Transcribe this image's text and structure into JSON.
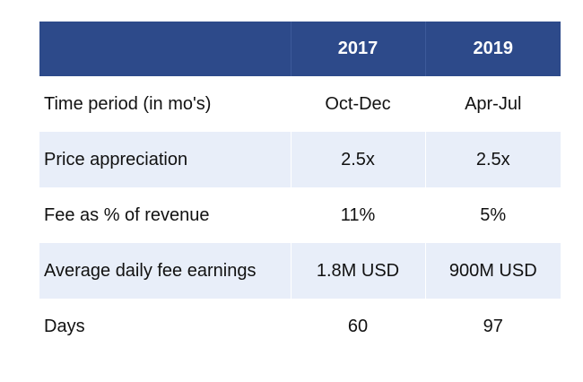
{
  "chart_data": {
    "type": "table",
    "columns": [
      "",
      "2017",
      "2019"
    ],
    "rows": [
      {
        "label": "Time period (in mo's)",
        "values": [
          "Oct-Dec",
          "Apr-Jul"
        ]
      },
      {
        "label": "Price appreciation",
        "values": [
          "2.5x",
          "2.5x"
        ]
      },
      {
        "label": "Fee as % of revenue",
        "values": [
          "11%",
          "5%"
        ]
      },
      {
        "label": "Average daily fee earnings",
        "values": [
          "1.8M USD",
          "900M USD"
        ]
      },
      {
        "label": "Days",
        "values": [
          "60",
          "97"
        ]
      }
    ]
  },
  "colors": {
    "header_bg": "#2d4a8a",
    "header_text": "#ffffff",
    "shaded_row": "#e8eef9",
    "plain_row": "#ffffff"
  }
}
